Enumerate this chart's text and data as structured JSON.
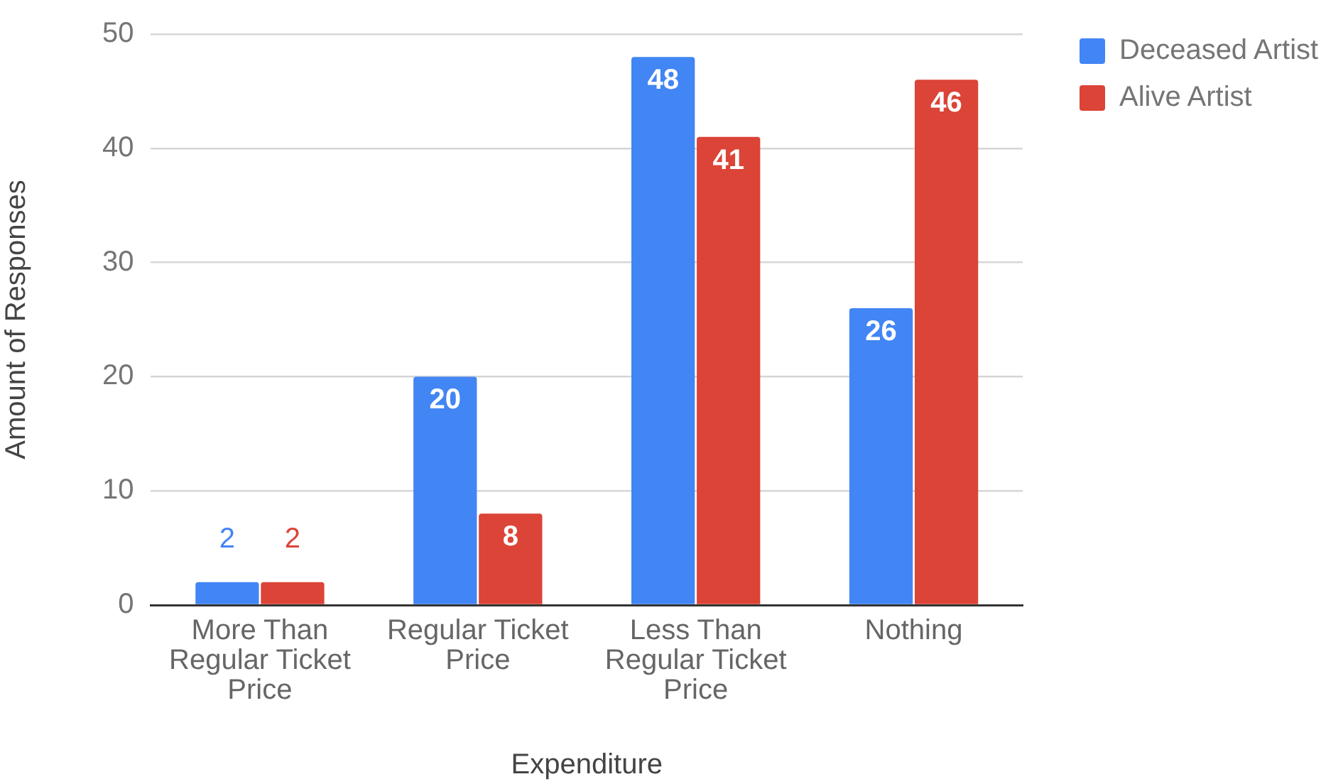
{
  "chart_data": {
    "type": "bar",
    "xlabel": "Expenditure",
    "ylabel": "Amount of Responses",
    "categories": [
      "More Than Regular Ticket Price",
      "Regular Ticket Price",
      "Less Than Regular Ticket Price",
      "Nothing"
    ],
    "series": [
      {
        "name": "Deceased Artist",
        "color": "#4285f4",
        "values": [
          2,
          20,
          48,
          26
        ]
      },
      {
        "name": "Alive Artist",
        "color": "#db4437",
        "values": [
          2,
          8,
          41,
          46
        ]
      }
    ],
    "ylim": [
      0,
      50
    ],
    "yticks": [
      0,
      10,
      20,
      30,
      40,
      50
    ],
    "grid": "y",
    "legend": "top right",
    "data_labels": true
  }
}
